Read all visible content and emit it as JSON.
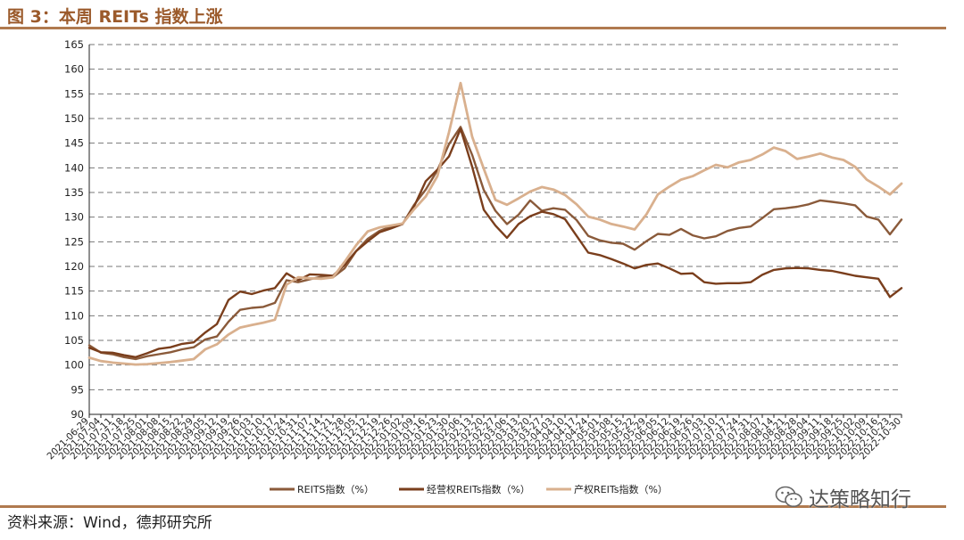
{
  "header": {
    "title": "图 3：本周 REITs 指数上涨"
  },
  "footer": {
    "source": "资料来源：Wind，德邦研究所"
  },
  "watermark": {
    "text": "达策略知行"
  },
  "colors": {
    "accent": "#b07a4f",
    "title": "#9b5a2b",
    "grid": "#888888"
  },
  "chart_data": {
    "type": "line",
    "ylim": [
      90,
      165
    ],
    "yticks": [
      90,
      95,
      100,
      105,
      110,
      115,
      120,
      125,
      130,
      135,
      140,
      145,
      150,
      155,
      160,
      165
    ],
    "grid": "horizontal dashed",
    "legend_position": "bottom",
    "x_tick_labels": [
      "2021-06-29",
      "2021-07-04",
      "2021-07-11",
      "2021-07-18",
      "2021-07-25",
      "2021-08-01",
      "2021-08-08",
      "2021-08-15",
      "2021-08-22",
      "2021-08-29",
      "2021-09-05",
      "2021-09-12",
      "2021-09-19",
      "2021-09-26",
      "2021-10-03",
      "2021-10-10",
      "2021-10-17",
      "2021-10-24",
      "2021-10-31",
      "2021-11-07",
      "2021-11-14",
      "2021-11-21",
      "2021-11-28",
      "2021-12-05",
      "2021-12-12",
      "2021-12-19",
      "2021-12-26",
      "2022-01-02",
      "2022-01-09",
      "2022-01-16",
      "2022-01-23",
      "2022-01-30",
      "2022-02-06",
      "2022-02-13",
      "2022-02-20",
      "2022-02-27",
      "2022-03-06",
      "2022-03-13",
      "2022-03-20",
      "2022-03-27",
      "2022-04-03",
      "2022-04-10",
      "2022-04-17",
      "2022-04-24",
      "2022-05-01",
      "2022-05-08",
      "2022-05-15",
      "2022-05-22",
      "2022-05-29",
      "2022-06-05",
      "2022-06-12",
      "2022-06-19",
      "2022-06-26",
      "2022-07-03",
      "2022-07-10",
      "2022-07-17",
      "2022-07-24",
      "2022-07-31",
      "2022-08-07",
      "2022-08-14",
      "2022-08-21",
      "2022-08-28",
      "2022-09-04",
      "2022-09-11",
      "2022-09-18",
      "2022-09-25",
      "2022-10-02",
      "2022-10-09",
      "2022-10-16",
      "2022-10-23",
      "2022-10-30"
    ],
    "series": [
      {
        "name": "REITS指数（%）",
        "color": "#8a5a3a",
        "width": 2.4,
        "values": [
          104,
          102.5,
          102.2,
          101.6,
          101.2,
          101.8,
          102.2,
          102.6,
          103.2,
          103.6,
          105.2,
          105.8,
          108.8,
          111.2,
          111.6,
          111.8,
          112.6,
          117.2,
          116.8,
          117.4,
          117.9,
          117.8,
          119.6,
          123.1,
          125.6,
          127.2,
          128.1,
          128.6,
          132.5,
          135.6,
          139.5,
          144.8,
          148.3,
          142.6,
          135.5,
          131.3,
          128.6,
          130.5,
          133.4,
          131.3,
          131.8,
          131.5,
          129.4,
          126.2,
          125.3,
          124.8,
          124.6,
          123.4,
          125.1,
          126.6,
          126.4,
          127.6,
          126.3,
          125.7,
          126.1,
          127.2,
          127.8,
          128.1,
          129.8,
          131.6,
          131.8,
          132.1,
          132.6,
          133.4,
          133.1,
          132.8,
          132.4,
          130.1,
          129.5,
          126.5,
          129.5
        ]
      },
      {
        "name": "经营权REITs指数（%）",
        "color": "#7a3e1c",
        "width": 2.4,
        "values": [
          103.5,
          102.6,
          102.5,
          102,
          101.6,
          102.4,
          103.3,
          103.6,
          104.3,
          104.6,
          106.6,
          108.3,
          113.2,
          114.9,
          114.4,
          115.1,
          115.6,
          118.6,
          117.2,
          118.4,
          118.3,
          118.1,
          120.3,
          123.1,
          125.1,
          126.9,
          127.7,
          128.6,
          132.2,
          137.3,
          139.6,
          142.3,
          147.9,
          140.2,
          131.5,
          128.3,
          125.8,
          128.6,
          130.2,
          131.1,
          130.6,
          129.6,
          126.2,
          122.8,
          122.3,
          121.5,
          120.6,
          119.6,
          120.3,
          120.6,
          119.6,
          118.5,
          118.6,
          116.8,
          116.5,
          116.6,
          116.6,
          116.8,
          118.3,
          119.3,
          119.6,
          119.7,
          119.6,
          119.3,
          119.1,
          118.6,
          118.1,
          117.8,
          117.5,
          113.8,
          115.6
        ]
      },
      {
        "name": "产权REITs指数（%）",
        "color": "#d9b08e",
        "width": 2.8,
        "values": [
          101.5,
          100.8,
          100.5,
          100.3,
          100.1,
          100.2,
          100.4,
          100.6,
          100.9,
          101.2,
          103.2,
          104.2,
          106.2,
          107.6,
          108.1,
          108.6,
          109.2,
          116.3,
          117.8,
          117.6,
          117.5,
          117.8,
          120.9,
          124.3,
          127.1,
          127.9,
          128.3,
          128.7,
          131.6,
          134.2,
          138.3,
          147.2,
          157.2,
          146.3,
          139.8,
          133.5,
          132.5,
          133.8,
          135.2,
          136.1,
          135.6,
          134.5,
          132.6,
          130.1,
          129.5,
          128.6,
          128.1,
          127.5,
          130.5,
          134.6,
          136.2,
          137.6,
          138.3,
          139.5,
          140.6,
          140.1,
          141.1,
          141.6,
          142.7,
          144.1,
          143.4,
          141.8,
          142.3,
          142.9,
          142.1,
          141.6,
          140.2,
          137.6,
          136.2,
          134.6,
          136.8
        ]
      }
    ]
  }
}
